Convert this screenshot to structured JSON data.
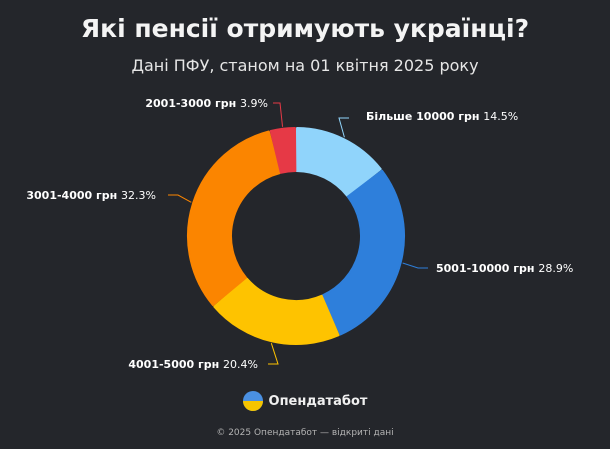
{
  "title": "Які пенсії отримують українці?",
  "subtitle": "Дані ПФУ, станом на 01 квітня 2025 року",
  "brand": {
    "name": "Опендатабот",
    "icon": "opendatabot-logo-icon"
  },
  "footer": "© 2025 Опендатабот — відкриті дані",
  "chart_data": {
    "type": "pie",
    "variant": "donut",
    "title": "Які пенсії отримують українці?",
    "subtitle": "Дані ПФУ, станом на 01 квітня 2025 року",
    "start_angle_deg": 0,
    "slices": [
      {
        "label": "Більше 10000 грн",
        "value": 14.5,
        "value_label": "14.5%",
        "color": "#90d4fb"
      },
      {
        "label": "5001-10000 грн",
        "value": 28.9,
        "value_label": "28.9%",
        "color": "#2e7fdb"
      },
      {
        "label": "4001-5000 грн",
        "value": 20.4,
        "value_label": "20.4%",
        "color": "#fec300"
      },
      {
        "label": "3001-4000 грн",
        "value": 32.3,
        "value_label": "32.3%",
        "color": "#fb8500"
      },
      {
        "label": "2001-3000 грн",
        "value": 3.9,
        "value_label": "3.9%",
        "color": "#e63946"
      }
    ]
  }
}
